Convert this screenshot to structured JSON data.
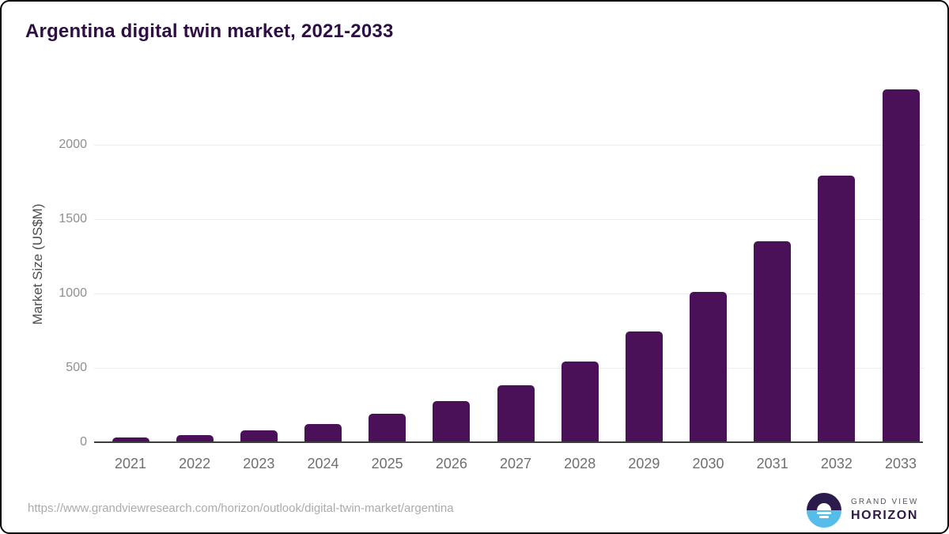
{
  "header": {
    "title": "Argentina digital twin market, 2021-2033"
  },
  "chart_data": {
    "type": "bar",
    "title": "Argentina digital twin market, 2021-2033",
    "categories": [
      "2021",
      "2022",
      "2023",
      "2024",
      "2025",
      "2026",
      "2027",
      "2028",
      "2029",
      "2030",
      "2031",
      "2032",
      "2033"
    ],
    "values": [
      30,
      50,
      80,
      125,
      190,
      275,
      385,
      540,
      745,
      1010,
      1350,
      1795,
      2370
    ],
    "xlabel": "",
    "ylabel": "Market Size (US$M)",
    "yticks": [
      0,
      500,
      1000,
      1500,
      2000
    ],
    "ylim": [
      0,
      2430
    ],
    "grid": true,
    "legend": false,
    "bar_color": "#4a1158",
    "gridline_color": "#ececec",
    "axis_color": "#3d3d3d"
  },
  "footer": {
    "source_url": "https://www.grandviewresearch.com/horizon/outlook/digital-twin-market/argentina",
    "logo": {
      "line1": "GRAND VIEW",
      "line2": "HORIZON"
    }
  },
  "colors": {
    "title": "#2d0f44",
    "bar": "#4a1158",
    "logo_dark": "#2b1b4d",
    "logo_blue": "#56bdea"
  }
}
